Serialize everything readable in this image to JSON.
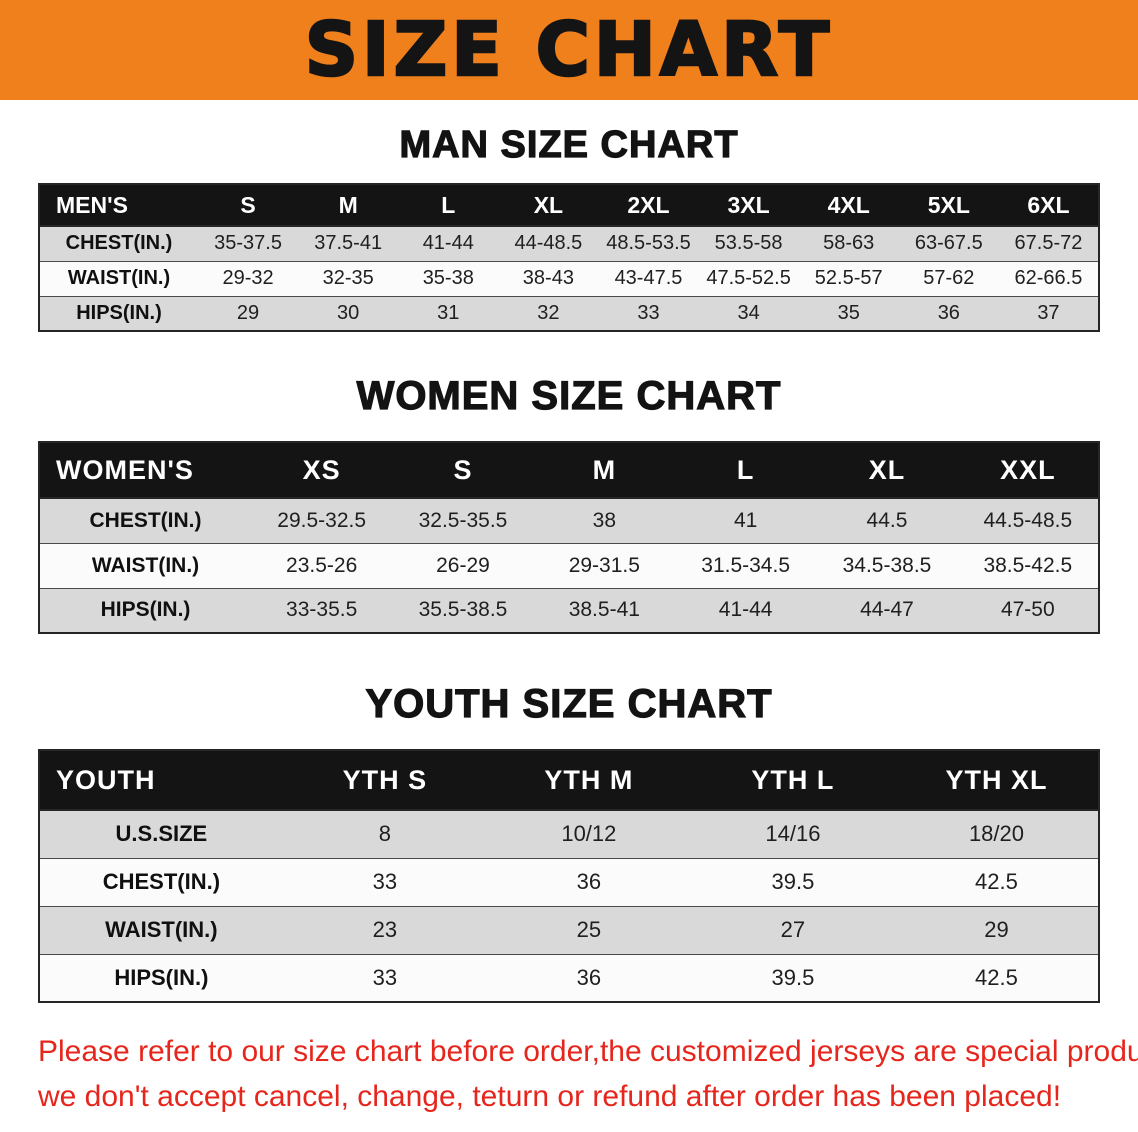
{
  "banner": {
    "title": "SIZE CHART",
    "bg_color": "#f0801c"
  },
  "men": {
    "heading": "MAN SIZE CHART",
    "header": [
      "MEN'S",
      "S",
      "M",
      "L",
      "XL",
      "2XL",
      "3XL",
      "4XL",
      "5XL",
      "6XL"
    ],
    "rows": [
      [
        "CHEST(IN.)",
        "35-37.5",
        "37.5-41",
        "41-44",
        "44-48.5",
        "48.5-53.5",
        "53.5-58",
        "58-63",
        "63-67.5",
        "67.5-72"
      ],
      [
        "WAIST(IN.)",
        "29-32",
        "32-35",
        "35-38",
        "38-43",
        "43-47.5",
        "47.5-52.5",
        "52.5-57",
        "57-62",
        "62-66.5"
      ],
      [
        "HIPS(IN.)",
        "29",
        "30",
        "31",
        "32",
        "33",
        "34",
        "35",
        "36",
        "37"
      ]
    ]
  },
  "women": {
    "heading": "WOMEN SIZE CHART",
    "header": [
      "WOMEN'S",
      "XS",
      "S",
      "M",
      "L",
      "XL",
      "XXL"
    ],
    "rows": [
      [
        "CHEST(IN.)",
        "29.5-32.5",
        "32.5-35.5",
        "38",
        "41",
        "44.5",
        "44.5-48.5"
      ],
      [
        "WAIST(IN.)",
        "23.5-26",
        "26-29",
        "29-31.5",
        "31.5-34.5",
        "34.5-38.5",
        "38.5-42.5"
      ],
      [
        "HIPS(IN.)",
        "33-35.5",
        "35.5-38.5",
        "38.5-41",
        "41-44",
        "44-47",
        "47-50"
      ]
    ]
  },
  "youth": {
    "heading": "YOUTH SIZE CHART",
    "header": [
      "YOUTH",
      "YTH S",
      "YTH M",
      "YTH L",
      "YTH XL"
    ],
    "rows": [
      [
        "U.S.SIZE",
        "8",
        "10/12",
        "14/16",
        "18/20"
      ],
      [
        "CHEST(IN.)",
        "33",
        "36",
        "39.5",
        "42.5"
      ],
      [
        "WAIST(IN.)",
        "23",
        "25",
        "27",
        "29"
      ],
      [
        "HIPS(IN.)",
        "33",
        "36",
        "39.5",
        "42.5"
      ]
    ]
  },
  "notice": {
    "color": "#e6261c",
    "line1": "Please refer to our size chart before order,the customized jerseys are special products,",
    "line2": "we don't accept cancel, change, teturn or refund after order has been placed!"
  }
}
